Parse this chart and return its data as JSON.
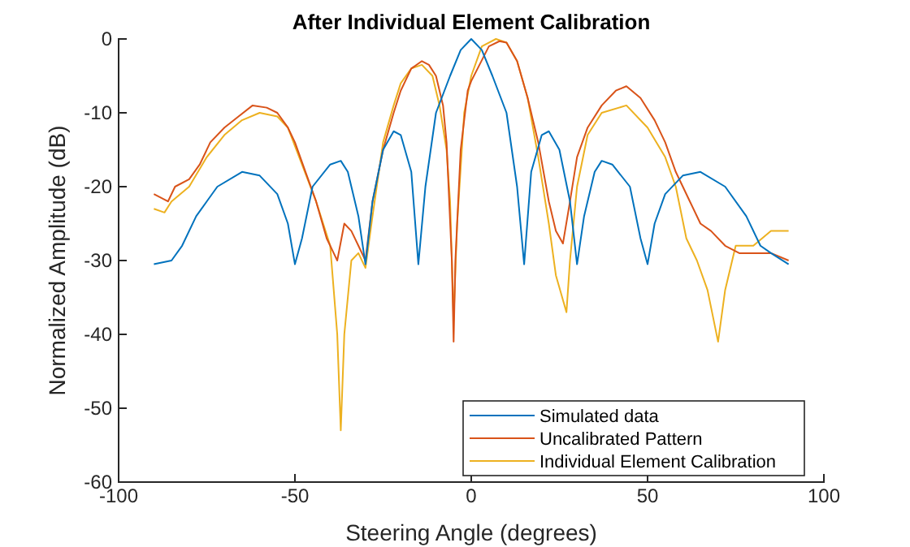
{
  "chart_data": {
    "type": "line",
    "title": "After Individual Element Calibration",
    "xlabel": "Steering Angle (degrees)",
    "ylabel": "Normalized Amplitude (dB)",
    "xlim": [
      -100,
      100
    ],
    "xticks": [
      -100,
      -50,
      0,
      50,
      100
    ],
    "ylim": [
      -60,
      0
    ],
    "yticks": [
      -60,
      -50,
      -40,
      -30,
      -20,
      -10,
      0
    ],
    "legend": "bottom right",
    "grid": false,
    "series": [
      {
        "name": "Simulated data",
        "color": "#0072bd",
        "x": [
          -90,
          -85,
          -82,
          -78,
          -72,
          -65,
          -60,
          -55,
          -52,
          -50,
          -48,
          -45,
          -40,
          -37,
          -35,
          -32,
          -30,
          -28,
          -25,
          -22,
          -20,
          -17,
          -15,
          -13,
          -10,
          -6,
          -3,
          0,
          3,
          6,
          10,
          13,
          15,
          17,
          20,
          22,
          25,
          28,
          30,
          32,
          35,
          37,
          40,
          45,
          48,
          50,
          52,
          55,
          60,
          65,
          72,
          78,
          82,
          85,
          90
        ],
        "values": [
          -30.5,
          -30,
          -28,
          -24,
          -20,
          -18,
          -18.5,
          -21,
          -25,
          -30.5,
          -27,
          -20,
          -17,
          -16.5,
          -18,
          -24,
          -30.5,
          -22,
          -15,
          -12.5,
          -13,
          -18,
          -30.5,
          -20,
          -10,
          -5,
          -1.5,
          0,
          -1.5,
          -5,
          -10,
          -20,
          -30.5,
          -18,
          -13,
          -12.5,
          -15,
          -22,
          -30.5,
          -24,
          -18,
          -16.5,
          -17,
          -20,
          -27,
          -30.5,
          -25,
          -21,
          -18.5,
          -18,
          -20,
          -24,
          -28,
          -29,
          -30.5
        ]
      },
      {
        "name": "Uncalibrated Pattern",
        "color": "#d95319",
        "x": [
          -90,
          -88,
          -86,
          -84,
          -80,
          -77,
          -74,
          -70,
          -66,
          -62,
          -58,
          -55,
          -52,
          -50,
          -47,
          -44,
          -41,
          -39,
          -38,
          -36,
          -34,
          -32,
          -30,
          -28,
          -25,
          -22,
          -20,
          -17,
          -14,
          -12,
          -10,
          -8,
          -7,
          -5.5,
          -5,
          -4.5,
          -3,
          -1,
          0,
          5,
          8,
          10,
          13,
          16,
          19,
          22,
          24,
          26,
          28,
          30,
          33,
          37,
          41,
          44,
          48,
          52,
          55,
          58,
          62,
          65,
          68,
          72,
          76,
          80,
          85,
          90
        ],
        "values": [
          -21,
          -21.5,
          -22,
          -20,
          -19,
          -17,
          -14,
          -12,
          -10.5,
          -9,
          -9.3,
          -10,
          -12,
          -14,
          -18,
          -22,
          -27,
          -29,
          -30,
          -25,
          -26,
          -28,
          -30,
          -22,
          -15,
          -10,
          -7,
          -4,
          -3,
          -3.5,
          -5,
          -9,
          -14,
          -30,
          -41,
          -30,
          -15,
          -7,
          -5.7,
          -1,
          -0.3,
          -0.5,
          -3,
          -8,
          -14,
          -22,
          -26,
          -27.7,
          -22,
          -16,
          -12,
          -9,
          -7,
          -6.4,
          -8,
          -11,
          -14,
          -18,
          -22,
          -25,
          -26,
          -28,
          -29,
          -29,
          -29,
          -30
        ]
      },
      {
        "name": "Individual Element Calibration",
        "color": "#edb120",
        "x": [
          -90,
          -87,
          -85,
          -80,
          -75,
          -70,
          -65,
          -60,
          -55,
          -52,
          -48,
          -44,
          -40,
          -38,
          -37,
          -36,
          -34,
          -32,
          -30,
          -28,
          -25,
          -22,
          -20,
          -17,
          -14,
          -11,
          -9,
          -7,
          -6,
          -5.5,
          -5,
          -4,
          -2,
          0,
          3,
          7,
          10,
          13,
          16,
          19,
          22,
          24,
          27,
          28,
          30,
          33,
          37,
          44,
          50,
          55,
          58,
          61,
          64,
          67,
          70,
          72,
          75,
          80,
          85,
          90
        ],
        "values": [
          -23,
          -23.5,
          -22,
          -20,
          -16,
          -13,
          -11,
          -10,
          -10.5,
          -12,
          -17,
          -22,
          -28,
          -40,
          -53,
          -40,
          -30,
          -29,
          -31,
          -24,
          -14,
          -9,
          -6,
          -4,
          -3.5,
          -5,
          -9,
          -15,
          -22,
          -30,
          -38,
          -25,
          -10,
          -5,
          -1,
          0,
          -0.5,
          -3,
          -8,
          -16,
          -25,
          -32,
          -37,
          -30,
          -20,
          -13,
          -10,
          -9,
          -12,
          -16,
          -20,
          -27,
          -30,
          -34,
          -41,
          -34,
          -28,
          -28,
          -26,
          -26
        ]
      }
    ]
  }
}
